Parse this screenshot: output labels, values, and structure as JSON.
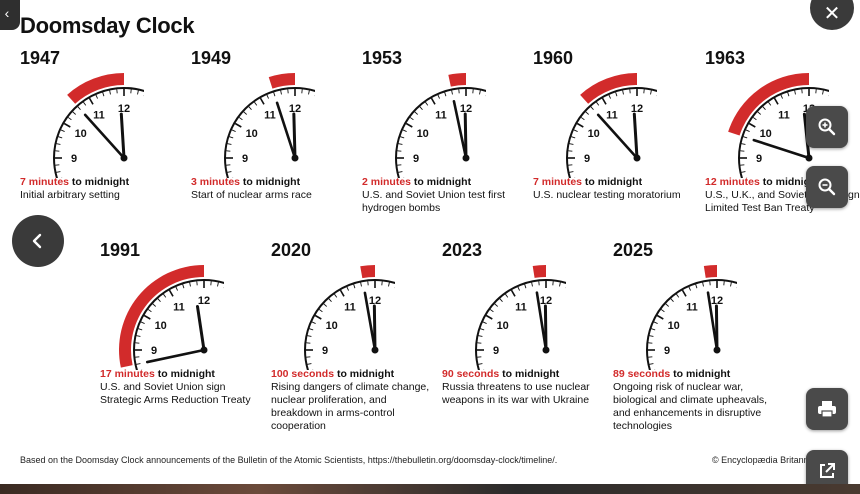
{
  "title": "Doomsday Clock",
  "clocks": [
    {
      "year": "1947",
      "mins": "7 minutes",
      "to": " to midnight",
      "desc": "Initial arbitrary setting",
      "minute_angle": -42
    },
    {
      "year": "1949",
      "mins": "3 minutes",
      "to": " to midnight",
      "desc": "Start of nuclear arms race",
      "minute_angle": -18
    },
    {
      "year": "1953",
      "mins": "2 minutes",
      "to": " to midnight",
      "desc": "U.S. and Soviet Union test first hydrogen bombs",
      "minute_angle": -12
    },
    {
      "year": "1960",
      "mins": "7 minutes",
      "to": " to midnight",
      "desc": "U.S. nuclear testing moratorium",
      "minute_angle": -42
    },
    {
      "year": "1963",
      "mins": "12 minutes",
      "to": " to midnight",
      "desc": "U.S., U.K., and Soviet Union sign Limited Test Ban Treaty",
      "minute_angle": -72
    },
    {
      "year": "1991",
      "mins": "17 minutes",
      "to": " to midnight",
      "desc": "U.S. and Soviet Union sign Strategic Arms Reduction Treaty",
      "minute_angle": -102
    },
    {
      "year": "2020",
      "mins": "100 seconds",
      "to": " to midnight",
      "desc": "Rising dangers of climate change, nuclear proliferation, and breakdown in arms-control cooperation",
      "minute_angle": -10
    },
    {
      "year": "2023",
      "mins": "90 seconds",
      "to": " to midnight",
      "desc": "Russia threatens to use nuclear weapons in its war with Ukraine",
      "minute_angle": -9
    },
    {
      "year": "2025",
      "mins": "89 seconds",
      "to": " to midnight",
      "desc": "Ongoing risk of nuclear war, biological and climate upheavals, and enhancements in disruptive technologies",
      "minute_angle": -8.9
    }
  ],
  "dial_numbers": [
    "9",
    "10",
    "11",
    "12"
  ],
  "source": "Based on the Doomsday Clock announcements of the Bulletin of the Atomic Scientists, https://thebulletin.org/doomsday-clock/timeline/.",
  "copyright": "© Encyclopædia Britannica, Inc.",
  "icons": {
    "prev": "chevron-left-icon",
    "back": "chevron-left-icon",
    "close": "close-icon",
    "zoom_in": "zoom-in-icon",
    "zoom_out": "zoom-out-icon",
    "print": "print-icon",
    "open": "open-external-icon"
  },
  "colors": {
    "accent": "#d22b2b",
    "button": "#4a4a4a"
  }
}
